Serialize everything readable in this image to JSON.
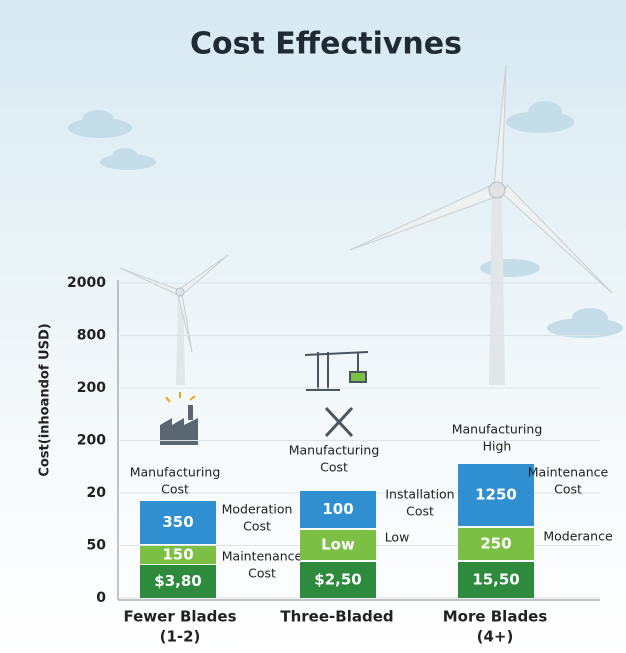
{
  "title": "Cost Effectivnes",
  "y_axis_label": "Cost(inhoandof USD)",
  "y_axis_labels": [
    "2000",
    "800",
    "200",
    "200",
    "20",
    "50",
    "0"
  ],
  "groups": [
    {
      "category": [
        "Fewer Blades",
        "(1-2)"
      ],
      "segments": [
        "$3,80",
        "150",
        "350"
      ],
      "annotations": [
        [
          "Manufacturing",
          "Cost"
        ],
        [
          "Moderation",
          "Cost"
        ],
        [
          "Maintenance",
          "Cost"
        ]
      ]
    },
    {
      "category": [
        "Three-Bladed"
      ],
      "segments": [
        "$2,50",
        "Low",
        "100"
      ],
      "annotations": [
        [
          "Manufacturing",
          "Cost"
        ],
        [
          "Installation",
          "Cost"
        ],
        [
          "Low"
        ]
      ]
    },
    {
      "category": [
        "More Blades",
        "(4+)"
      ],
      "segments": [
        "15,50",
        "250",
        "1250"
      ],
      "annotations": [
        [
          "Manufacturing",
          "High"
        ],
        [
          "Maintenance",
          "Cost"
        ],
        [
          "Moderance"
        ]
      ]
    }
  ]
}
